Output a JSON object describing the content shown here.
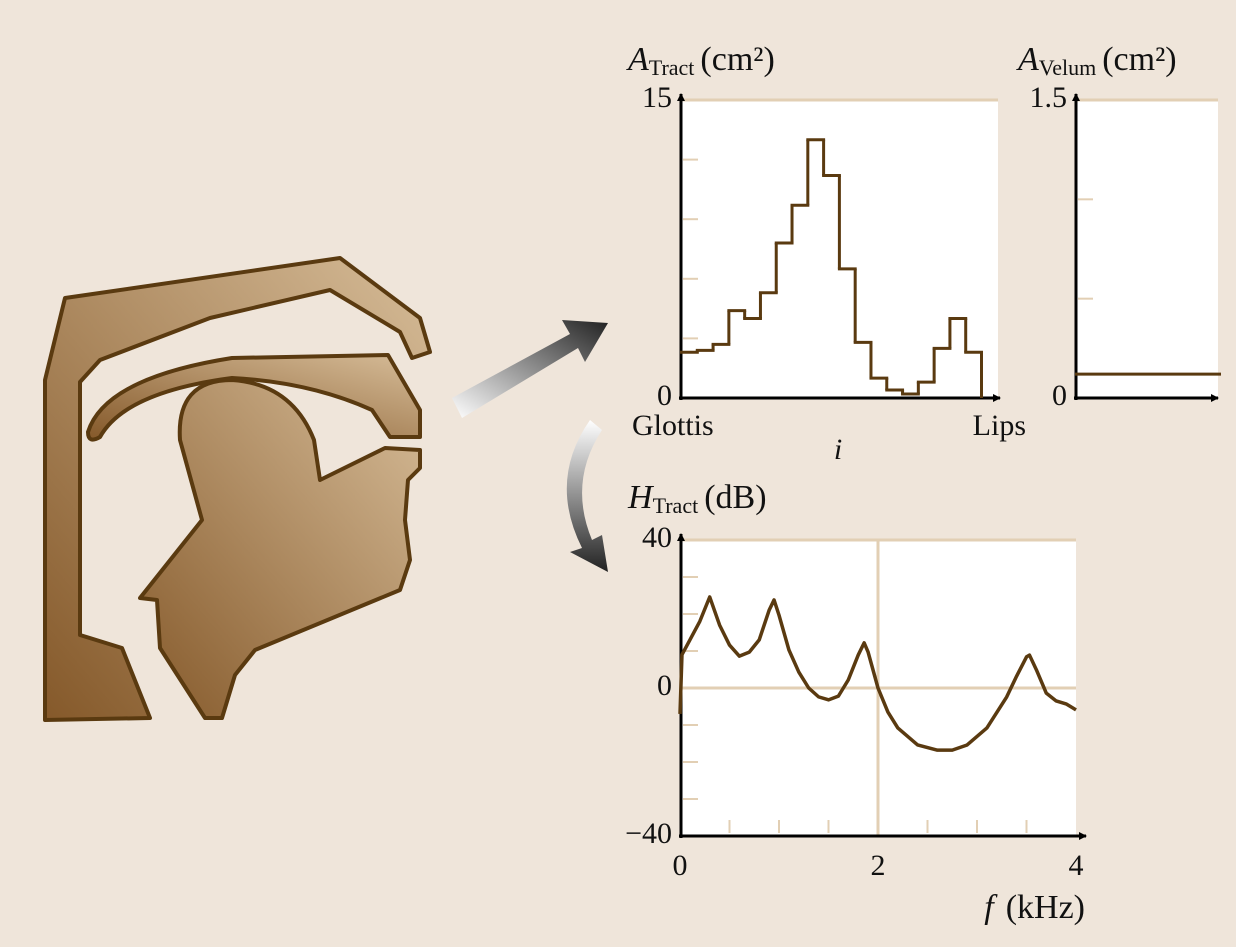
{
  "chart_data": [
    {
      "type": "step",
      "y_label_symbol": "A",
      "y_label_subscript": "Tract",
      "y_label_unit": "(cm²)",
      "x_start_label": "Glottis",
      "x_end_label": "Lips",
      "x_label": "i",
      "values": [
        2.3,
        2.4,
        2.7,
        4.4,
        4.0,
        5.3,
        7.8,
        9.7,
        13.0,
        11.2,
        6.5,
        2.8,
        1.0,
        0.4,
        0.2,
        0.8,
        2.5,
        4.0,
        2.3
      ],
      "color": "#5a3a10",
      "ylim": [
        0,
        15
      ],
      "yticks": [
        0,
        15
      ],
      "minor_yticks": [
        3,
        6,
        9,
        12
      ]
    },
    {
      "type": "step",
      "y_label_symbol": "A",
      "y_label_subscript": "Velum",
      "y_label_unit": "(cm²)",
      "values": [
        0.12
      ],
      "color": "#5a3a10",
      "ylim": [
        0,
        1.5
      ],
      "yticks": [
        0,
        1.5
      ],
      "minor_yticks": [
        0.5,
        1.0
      ]
    },
    {
      "type": "line",
      "y_label_symbol": "H",
      "y_label_subscript": "Tract",
      "y_label_unit": "(dB)",
      "x_label_symbol": "f",
      "x_label_unit": "(kHz)",
      "x": [
        0,
        0.02,
        0.1,
        0.2,
        0.3,
        0.4,
        0.5,
        0.6,
        0.7,
        0.8,
        0.9,
        0.95,
        1.0,
        1.1,
        1.2,
        1.3,
        1.4,
        1.5,
        1.6,
        1.7,
        1.8,
        1.86,
        1.9,
        2.0,
        2.1,
        2.2,
        2.4,
        2.6,
        2.75,
        2.9,
        3.1,
        3.3,
        3.4,
        3.5,
        3.53,
        3.6,
        3.7,
        3.8,
        3.9,
        4.0
      ],
      "values": [
        -7,
        9,
        13,
        18,
        24.6,
        17,
        11.6,
        8.6,
        9.7,
        13,
        21,
        23.8,
        19.7,
        10.3,
        4.3,
        0,
        -2.4,
        -3.2,
        -2.2,
        2.2,
        8.9,
        12.2,
        9.7,
        0,
        -6.5,
        -10.8,
        -15.4,
        -16.8,
        -16.8,
        -15.4,
        -10.8,
        -2.4,
        3.2,
        8.4,
        8.9,
        4.9,
        -1.4,
        -3.5,
        -4.3,
        -5.9
      ],
      "color": "#5a3a10",
      "xlim": [
        0,
        4
      ],
      "ylim": [
        -40,
        40
      ],
      "xticks": [
        0,
        2,
        4
      ],
      "yticks": [
        {
          "value": -40,
          "label": "−40"
        },
        0,
        40
      ],
      "minor_xticks": [
        0.5,
        1,
        1.5,
        2.5,
        3,
        3.5
      ],
      "minor_yticks": [
        -30,
        -20,
        -10,
        10,
        20,
        30
      ],
      "grid": true
    }
  ]
}
